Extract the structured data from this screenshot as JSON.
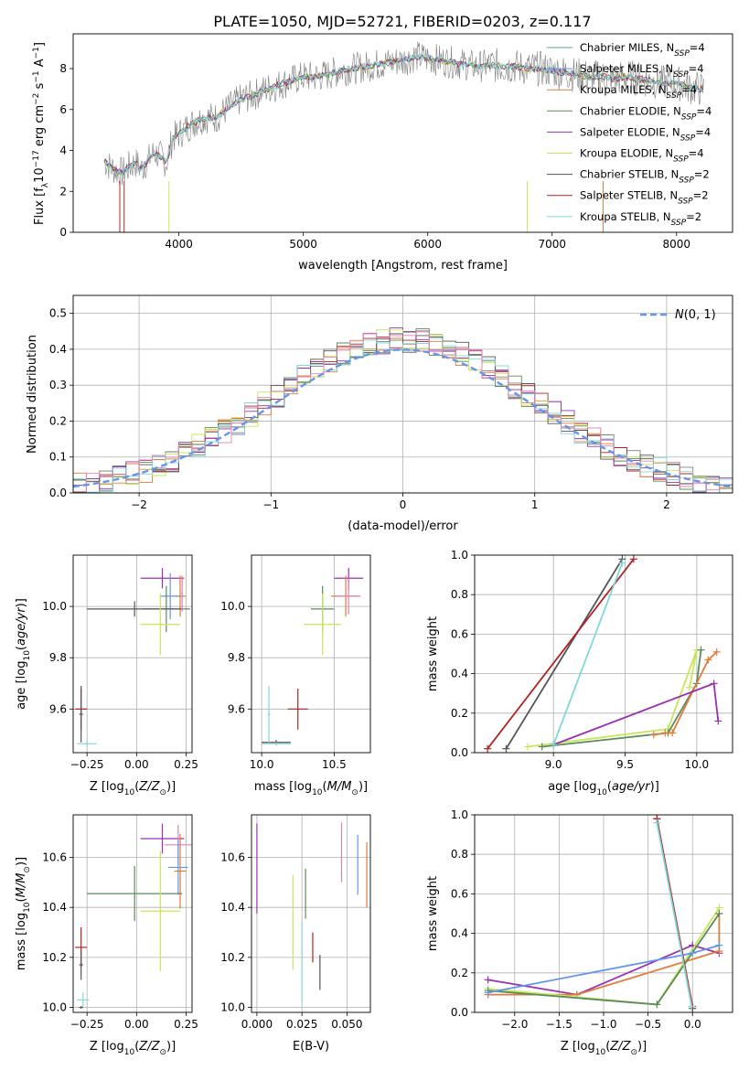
{
  "figure_title": "PLATE=1050, MJD=52721, FIBERID=0203, z=0.117",
  "colors": {
    "gray": "#808080",
    "red": "#b22222",
    "orange": "#e07b39",
    "green": "#5b8a5b",
    "purple": "#9b30b0",
    "lime": "#c8e65a",
    "dark": "#555555",
    "cyan": "#80d8d8",
    "blue": "#6495ed",
    "pink": "#e680b0",
    "darkred": "#a01818"
  },
  "chart_data": [
    {
      "id": "spectrum",
      "type": "line",
      "xlabel": "wavelength [Angstrom, rest frame]",
      "ylabel": "Flux [f_λ 10^-17 erg cm^-2 s^-1 A^-1]",
      "xlim": [
        3150,
        8450
      ],
      "ylim": [
        0,
        9.7
      ],
      "xticks": [
        4000,
        5000,
        6000,
        7000,
        8000
      ],
      "yticks": [
        0,
        2,
        4,
        6,
        8
      ],
      "grid": false,
      "legend_position": "right",
      "legend": [
        {
          "label": "Chabrier MILES, N_SSP=4",
          "color": "#5f9ea0"
        },
        {
          "label": "Salpeter MILES, N_SSP=4",
          "color": "#6495ed"
        },
        {
          "label": "Kroupa MILES, N_SSP=4",
          "color": "#e07b39"
        },
        {
          "label": "Chabrier ELODIE, N_SSP=4",
          "color": "#5b8a5b"
        },
        {
          "label": "Salpeter ELODIE, N_SSP=4",
          "color": "#9b30b0"
        },
        {
          "label": "Kroupa ELODIE, N_SSP=4",
          "color": "#c8e65a"
        },
        {
          "label": "Chabrier STELIB, N_SSP=2",
          "color": "#555555"
        },
        {
          "label": "Salpeter STELIB, N_SSP=2",
          "color": "#b22222"
        },
        {
          "label": "Kroupa STELIB, N_SSP=2",
          "color": "#80d8d8"
        }
      ],
      "series": [
        {
          "points": [
            [
              3400,
              3.5
            ],
            [
              3450,
              3.2
            ],
            [
              3500,
              3.0
            ],
            [
              3550,
              2.9
            ],
            [
              3600,
              3.2
            ],
            [
              3650,
              3.4
            ],
            [
              3700,
              3.1
            ],
            [
              3750,
              3.5
            ],
            [
              3800,
              3.9
            ],
            [
              3850,
              3.7
            ],
            [
              3900,
              3.4
            ],
            [
              3950,
              4.6
            ],
            [
              4000,
              4.8
            ],
            [
              4100,
              5.3
            ],
            [
              4200,
              5.6
            ],
            [
              4300,
              5.6
            ],
            [
              4400,
              6.1
            ],
            [
              4500,
              6.5
            ],
            [
              4600,
              6.7
            ],
            [
              4700,
              7.0
            ],
            [
              4800,
              7.2
            ],
            [
              4900,
              7.4
            ],
            [
              5000,
              7.6
            ],
            [
              5100,
              7.6
            ],
            [
              5200,
              7.7
            ],
            [
              5300,
              7.9
            ],
            [
              5400,
              8.0
            ],
            [
              5500,
              8.1
            ],
            [
              5600,
              8.2
            ],
            [
              5700,
              8.3
            ],
            [
              5800,
              8.4
            ],
            [
              5900,
              8.6
            ],
            [
              6000,
              8.5
            ],
            [
              6100,
              8.4
            ],
            [
              6200,
              8.3
            ],
            [
              6300,
              8.2
            ],
            [
              6400,
              8.1
            ],
            [
              6500,
              8.2
            ],
            [
              6600,
              8.1
            ],
            [
              6700,
              8.1
            ],
            [
              6800,
              8.0
            ],
            [
              6900,
              8.0
            ],
            [
              7000,
              7.9
            ],
            [
              7100,
              7.8
            ],
            [
              7200,
              7.7
            ],
            [
              7300,
              7.6
            ],
            [
              7400,
              7.6
            ],
            [
              7500,
              7.5
            ],
            [
              7600,
              7.6
            ],
            [
              7700,
              7.5
            ],
            [
              7800,
              7.4
            ],
            [
              7900,
              7.3
            ],
            [
              8000,
              7.3
            ],
            [
              8100,
              7.1
            ],
            [
              8200,
              7.0
            ]
          ]
        }
      ]
    },
    {
      "id": "residuals",
      "type": "histogram",
      "xlabel": "(data-model)/error",
      "ylabel": "Normed distribution",
      "xlim": [
        -2.5,
        2.5
      ],
      "ylim": [
        0,
        0.55
      ],
      "xticks": [
        -2,
        -1,
        0,
        1,
        2
      ],
      "yticks": [
        0.0,
        0.1,
        0.2,
        0.3,
        0.4,
        0.5
      ],
      "grid": true,
      "legend_position": "top-right",
      "legend": [
        {
          "label": "N(0,1)",
          "color": "#6495ed",
          "style": "dashed"
        }
      ]
    },
    {
      "id": "age_vs_Z",
      "type": "errorbar",
      "xlabel": "Z [log10(Z/Z☉)]",
      "ylabel": "age  [log10(age/yr)]",
      "xlim": [
        -0.32,
        0.28
      ],
      "ylim": [
        9.43,
        10.2
      ],
      "xticks": [
        -0.25,
        0.0,
        0.25
      ],
      "yticks": [
        9.6,
        9.8,
        10.0
      ],
      "grid": true
    },
    {
      "id": "age_vs_mass",
      "type": "errorbar",
      "xlabel": "mass [log10(M/M☉)]",
      "ylabel": "",
      "xlim": [
        9.93,
        10.75
      ],
      "ylim": [
        9.43,
        10.2
      ],
      "xticks": [
        10.0,
        10.5
      ],
      "yticks": [
        9.6,
        9.8,
        10.0
      ],
      "grid": true
    },
    {
      "id": "massweight_vs_age",
      "type": "line",
      "xlabel": "age  [log10(age/yr)]",
      "ylabel": "mass weight",
      "xlim": [
        8.45,
        10.25
      ],
      "ylim": [
        0,
        1.0
      ],
      "xticks": [
        9.0,
        9.5,
        10.0
      ],
      "yticks": [
        0.0,
        0.2,
        0.4,
        0.6,
        0.8,
        1.0
      ],
      "grid": true
    },
    {
      "id": "mass_vs_Z",
      "type": "errorbar",
      "xlabel": "Z [log10(Z/Z☉)]",
      "ylabel": "mass [log10(M/M☉)]",
      "xlim": [
        -0.32,
        0.28
      ],
      "ylim": [
        9.98,
        10.77
      ],
      "xticks": [
        -0.25,
        0.0,
        0.25
      ],
      "yticks": [
        10.0,
        10.2,
        10.4,
        10.6
      ],
      "grid": true
    },
    {
      "id": "mass_vs_ebv",
      "type": "errorbar",
      "xlabel": "E(B-V)",
      "ylabel": "",
      "xlim": [
        -0.003,
        0.063
      ],
      "ylim": [
        9.98,
        10.77
      ],
      "xticks": [
        0.0,
        0.025,
        0.05
      ],
      "yticks": [
        10.0,
        10.2,
        10.4,
        10.6
      ],
      "grid": true
    },
    {
      "id": "massweight_vs_Z",
      "type": "line",
      "xlabel": "Z [log10(Z/Z☉)]",
      "ylabel": "mass weight",
      "xlim": [
        -2.45,
        0.45
      ],
      "ylim": [
        0,
        1.0
      ],
      "xticks": [
        -2.0,
        -1.5,
        -1.0,
        -0.5,
        0.0
      ],
      "yticks": [
        0.0,
        0.2,
        0.4,
        0.6,
        0.8,
        1.0
      ],
      "grid": true
    }
  ]
}
